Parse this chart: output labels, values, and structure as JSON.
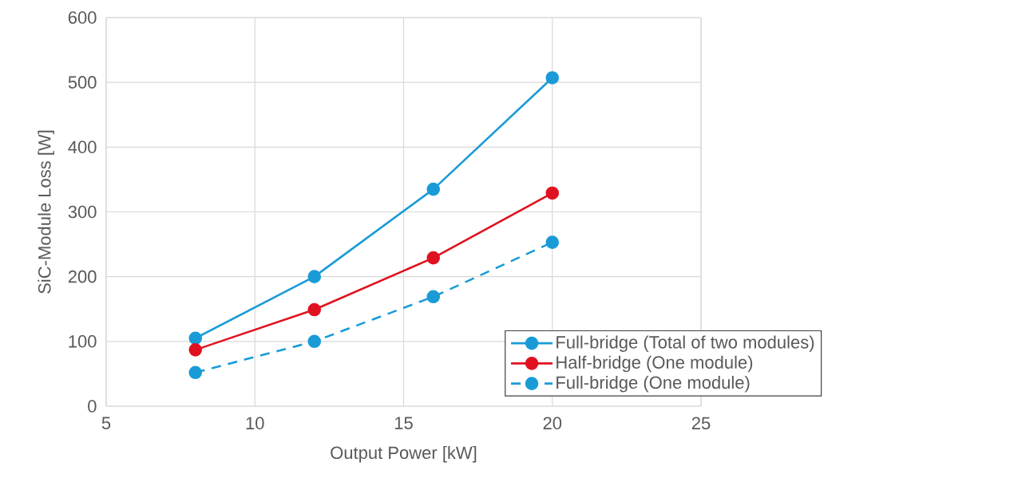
{
  "chart_data": {
    "type": "line",
    "xlabel": "Output Power [kW]",
    "ylabel": "SiC-Module Loss [W]",
    "xlim": [
      5,
      25
    ],
    "xticks": [
      5,
      10,
      15,
      20,
      25
    ],
    "ylim": [
      0,
      600
    ],
    "yticks": [
      0,
      100,
      200,
      300,
      400,
      500,
      600
    ],
    "grid": true,
    "legend": "bottom right",
    "marker": "circle",
    "line_style": "solid",
    "x": [
      8,
      12,
      16,
      20
    ],
    "series": [
      {
        "name": "Full-bridge (Total of two modules)",
        "color": "#1a9bd7",
        "values": [
          105,
          200,
          335,
          507
        ]
      },
      {
        "name": "Half-bridge (One module)",
        "color": "#e0121f",
        "values": [
          87,
          149,
          229,
          329
        ]
      },
      {
        "name": "Full-bridge (One module)",
        "color": "#1a9bd7",
        "line_style": "dashed",
        "values": [
          52,
          100,
          169,
          253
        ]
      }
    ]
  }
}
